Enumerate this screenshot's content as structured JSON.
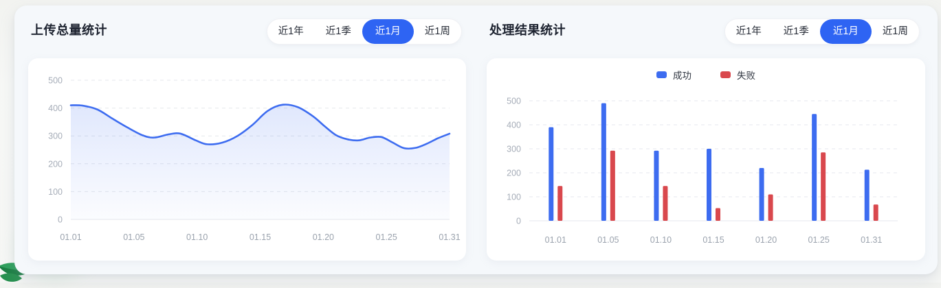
{
  "panels": {
    "left": {
      "title": "上传总量统计"
    },
    "right": {
      "title": "处理结果统计"
    }
  },
  "time_ranges": {
    "options": [
      "近1年",
      "近1季",
      "近1月",
      "近1周"
    ],
    "active": "近1月"
  },
  "colors": {
    "brand_blue": "#2e64f3",
    "chart_blue": "#3d6cf0",
    "chart_red": "#d9484d",
    "grid_line": "#e4e7ec",
    "axis_text": "#a6adb8"
  },
  "icons": {
    "decoration": "leaf-plant-decoration"
  },
  "chart_data": [
    {
      "type": "area",
      "title": "上传总量统计",
      "x_labels": [
        "01.01",
        "01.05",
        "01.10",
        "01.15",
        "01.20",
        "01.25",
        "01.31"
      ],
      "yticks": [
        0,
        100,
        200,
        300,
        400,
        500
      ],
      "ylim": [
        0,
        500
      ],
      "grid": "dashed",
      "legend": "none",
      "line_color": "#3d6cf0",
      "area_color": "#3d6cf0",
      "points": [
        [
          0.0,
          410
        ],
        [
          0.03,
          409
        ],
        [
          0.07,
          395
        ],
        [
          0.11,
          362
        ],
        [
          0.15,
          330
        ],
        [
          0.19,
          302
        ],
        [
          0.22,
          294
        ],
        [
          0.26,
          306
        ],
        [
          0.29,
          308
        ],
        [
          0.33,
          284
        ],
        [
          0.36,
          270
        ],
        [
          0.4,
          276
        ],
        [
          0.44,
          300
        ],
        [
          0.48,
          340
        ],
        [
          0.52,
          390
        ],
        [
          0.56,
          412
        ],
        [
          0.6,
          403
        ],
        [
          0.64,
          370
        ],
        [
          0.67,
          335
        ],
        [
          0.7,
          303
        ],
        [
          0.73,
          288
        ],
        [
          0.76,
          284
        ],
        [
          0.79,
          294
        ],
        [
          0.82,
          296
        ],
        [
          0.85,
          276
        ],
        [
          0.88,
          256
        ],
        [
          0.91,
          257
        ],
        [
          0.94,
          272
        ],
        [
          0.97,
          292
        ],
        [
          1.0,
          308
        ]
      ]
    },
    {
      "type": "bar",
      "title": "处理结果统计",
      "categories": [
        "01.01",
        "01.05",
        "01.10",
        "01.15",
        "01.20",
        "01.25",
        "01.31"
      ],
      "yticks": [
        0,
        100,
        200,
        300,
        400,
        500
      ],
      "ylim": [
        0,
        500
      ],
      "grid": "dashed",
      "legend_position": "top",
      "series": [
        {
          "name": "成功",
          "color": "#3d6cf0",
          "values": [
            390,
            490,
            292,
            300,
            220,
            445,
            213
          ]
        },
        {
          "name": "失败",
          "color": "#d9484d",
          "values": [
            145,
            292,
            145,
            53,
            110,
            285,
            68
          ]
        }
      ]
    }
  ]
}
